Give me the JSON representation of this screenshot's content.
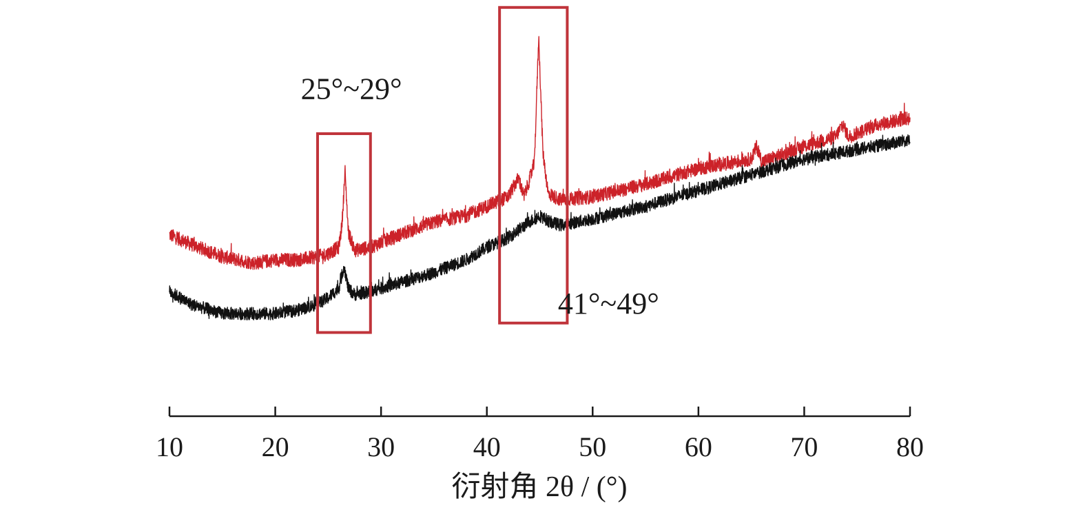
{
  "chart_data": {
    "type": "line",
    "title": "",
    "xlabel": "衍射角 2θ / (°)",
    "ylabel": "",
    "xlim": [
      10,
      80
    ],
    "ylim": [
      0,
      100
    ],
    "y_axis_visible": false,
    "grid": false,
    "x_ticks": [
      10,
      20,
      30,
      40,
      50,
      60,
      70,
      80
    ],
    "colors": {
      "upper": "#cc2229",
      "lower": "#111111",
      "box": "#c0343b"
    },
    "series": [
      {
        "color": "#cc2229",
        "points": [
          [
            10,
            37
          ],
          [
            12,
            34
          ],
          [
            15,
            30
          ],
          [
            18,
            28
          ],
          [
            20,
            29
          ],
          [
            22,
            29
          ],
          [
            24,
            30
          ],
          [
            25,
            31
          ],
          [
            26,
            33
          ],
          [
            26.3,
            40
          ],
          [
            26.6,
            57
          ],
          [
            26.9,
            38
          ],
          [
            27.5,
            32
          ],
          [
            29,
            33
          ],
          [
            31,
            36
          ],
          [
            35,
            41
          ],
          [
            38,
            43
          ],
          [
            40,
            46
          ],
          [
            42,
            49
          ],
          [
            43,
            55
          ],
          [
            43.5,
            49
          ],
          [
            44,
            54
          ],
          [
            44.5,
            60
          ],
          [
            44.9,
            100
          ],
          [
            45.3,
            63
          ],
          [
            45.8,
            50
          ],
          [
            47,
            48
          ],
          [
            50,
            49
          ],
          [
            55,
            53
          ],
          [
            60,
            58
          ],
          [
            65,
            61
          ],
          [
            65.5,
            65
          ],
          [
            66,
            60
          ],
          [
            70,
            65
          ],
          [
            73,
            68
          ],
          [
            73.6,
            72
          ],
          [
            74.2,
            68
          ],
          [
            77,
            72
          ],
          [
            80,
            74
          ]
        ],
        "noise": 2.2
      },
      {
        "color": "#111111",
        "points": [
          [
            10,
            19
          ],
          [
            12,
            15
          ],
          [
            15,
            12
          ],
          [
            18,
            12
          ],
          [
            20,
            12
          ],
          [
            22,
            13
          ],
          [
            24,
            15
          ],
          [
            25,
            17
          ],
          [
            26,
            20
          ],
          [
            26.5,
            27
          ],
          [
            26.9,
            20
          ],
          [
            27.5,
            18
          ],
          [
            29,
            19
          ],
          [
            31,
            21
          ],
          [
            35,
            25
          ],
          [
            38,
            29
          ],
          [
            40,
            33
          ],
          [
            42,
            36
          ],
          [
            44,
            41
          ],
          [
            45,
            43
          ],
          [
            46,
            41
          ],
          [
            47,
            40
          ],
          [
            50,
            42
          ],
          [
            55,
            46
          ],
          [
            60,
            51
          ],
          [
            65,
            56
          ],
          [
            70,
            61
          ],
          [
            75,
            64
          ],
          [
            80,
            67
          ]
        ],
        "noise": 2.0
      }
    ],
    "highlight_boxes": [
      {
        "x_range": [
          24,
          29
        ],
        "y_range": [
          6,
          69
        ]
      },
      {
        "x_range": [
          41.2,
          47.6
        ],
        "y_range": [
          9,
          109
        ]
      }
    ],
    "annotations": [
      {
        "text": "25°~29°",
        "x": 27.2,
        "y": 80
      },
      {
        "text": "41°~49°",
        "x": 51.5,
        "y": 12
      }
    ]
  }
}
